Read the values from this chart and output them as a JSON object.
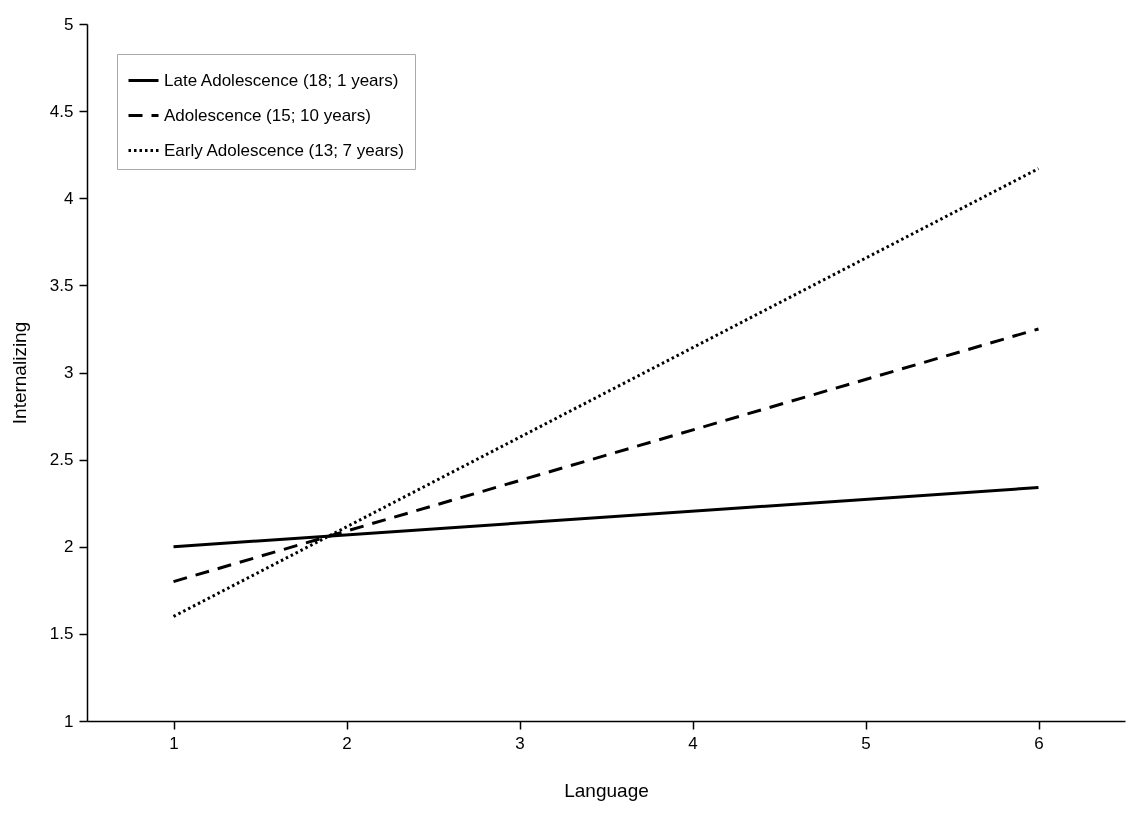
{
  "chart_data": {
    "type": "line",
    "xlabel": "Language",
    "ylabel": "Internalizing",
    "x": [
      1,
      6
    ],
    "series": [
      {
        "name": "Late Adolescence (18; 1 years)",
        "color": "#000000",
        "line_style": "solid",
        "values": [
          2.0,
          2.34
        ]
      },
      {
        "name": "Adolescence (15; 10 years)",
        "color": "#000000",
        "line_style": "dashed",
        "values": [
          1.8,
          3.25
        ]
      },
      {
        "name": "Early Adolescence (13; 7 years)",
        "color": "#000000",
        "line_style": "dotted",
        "values": [
          1.6,
          4.17
        ]
      }
    ],
    "xlim": [
      0.5,
      6.5
    ],
    "xticks": [
      1,
      2,
      3,
      4,
      5,
      6
    ],
    "ylim": [
      1,
      5
    ],
    "yticks": [
      1,
      1.5,
      2,
      2.5,
      3,
      3.5,
      4,
      4.5,
      5
    ],
    "grid": false,
    "legend": "top left",
    "marker": "none"
  }
}
